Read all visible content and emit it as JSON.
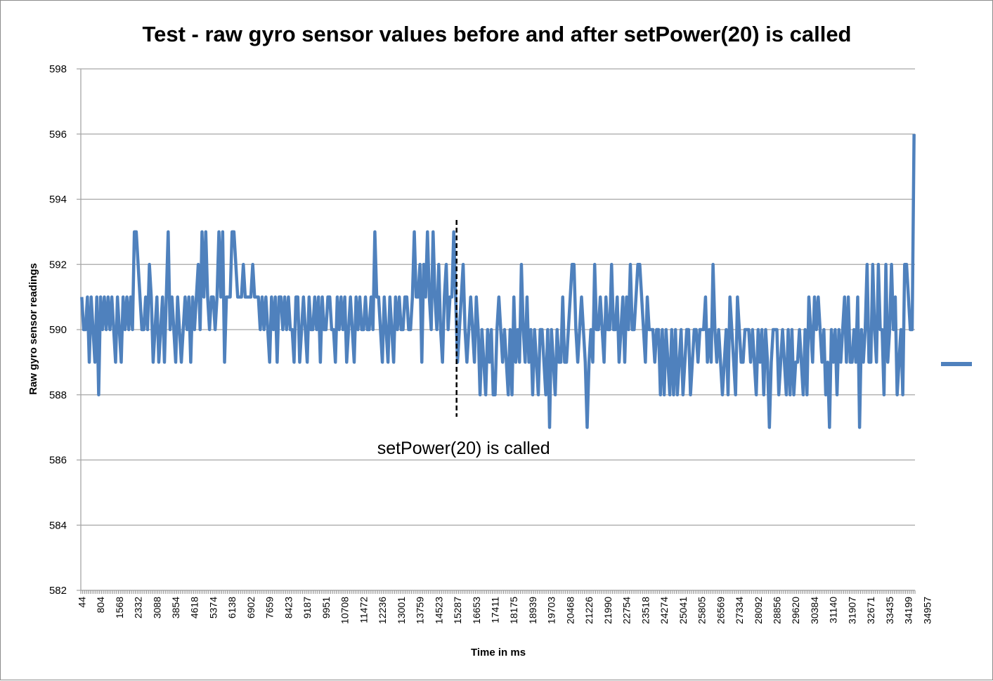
{
  "chart_data": {
    "type": "line",
    "title": "Test - raw gyro sensor values before and after setPower(20) is called",
    "xlabel": "Time in ms",
    "ylabel": "Raw gyro sensor readings",
    "ylim": [
      582,
      598
    ],
    "y_ticks": [
      582,
      584,
      586,
      588,
      590,
      592,
      594,
      596,
      598
    ],
    "x_ticks": [
      "44",
      "804",
      "1568",
      "2332",
      "3088",
      "3854",
      "4618",
      "5374",
      "6138",
      "6902",
      "7659",
      "8423",
      "9187",
      "9951",
      "10708",
      "11472",
      "12236",
      "13001",
      "13759",
      "14523",
      "15287",
      "16653",
      "17411",
      "18175",
      "18939",
      "19703",
      "20468",
      "21226",
      "21990",
      "22754",
      "23518",
      "24274",
      "25041",
      "25805",
      "26569",
      "27334",
      "28092",
      "28856",
      "29620",
      "30384",
      "31140",
      "31907",
      "32671",
      "33435",
      "34199",
      "34957"
    ],
    "grid": "horizontal",
    "legend": "right",
    "colors": {
      "series": "#4F81BD",
      "grid": "#a6a6a6",
      "annotation": "#000000"
    },
    "annotation": {
      "text": "setPower(20) is called",
      "x_index": 200
    },
    "series": [
      {
        "values": [
          591,
          590,
          590,
          591,
          589,
          591,
          590,
          589,
          591,
          588,
          591,
          590,
          591,
          590,
          591,
          590,
          591,
          590,
          589,
          591,
          590,
          589,
          591,
          590,
          591,
          590,
          591,
          590,
          593,
          593,
          592,
          591,
          590,
          590,
          591,
          590,
          592,
          591,
          589,
          590,
          591,
          589,
          590,
          591,
          589,
          591,
          593,
          590,
          591,
          590,
          589,
          591,
          590,
          589,
          590,
          591,
          590,
          591,
          589,
          591,
          590,
          591,
          592,
          590,
          593,
          591,
          593,
          591,
          590,
          591,
          591,
          590,
          591,
          593,
          591,
          593,
          589,
          591,
          591,
          591,
          593,
          593,
          592,
          591,
          591,
          591,
          592,
          591,
          591,
          591,
          591,
          592,
          591,
          591,
          591,
          590,
          591,
          590,
          591,
          590,
          589,
          591,
          590,
          591,
          589,
          591,
          591,
          590,
          591,
          590,
          591,
          590,
          590,
          589,
          591,
          591,
          589,
          590,
          591,
          590,
          589,
          591,
          590,
          590,
          591,
          590,
          591,
          589,
          591,
          590,
          590,
          591,
          591,
          590,
          590,
          589,
          591,
          590,
          591,
          590,
          591,
          589,
          590,
          591,
          590,
          589,
          591,
          590,
          591,
          590,
          590,
          591,
          590,
          590,
          591,
          590,
          593,
          591,
          591,
          590,
          589,
          591,
          590,
          589,
          591,
          590,
          589,
          591,
          590,
          591,
          590,
          590,
          591,
          591,
          590,
          590,
          591,
          593,
          591,
          591,
          592,
          589,
          592,
          591,
          593,
          591,
          590,
          593,
          591,
          590,
          592,
          590,
          589,
          591,
          592,
          590,
          591,
          591,
          593,
          591,
          589,
          590,
          591,
          592,
          590,
          589,
          590,
          591,
          590,
          589,
          591,
          590,
          588,
          590,
          589,
          588,
          590,
          589,
          590,
          588,
          588,
          590,
          591,
          590,
          589,
          590,
          589,
          588,
          590,
          588,
          591,
          589,
          590,
          589,
          592,
          590,
          589,
          591,
          589,
          590,
          588,
          590,
          589,
          588,
          590,
          590,
          589,
          588,
          590,
          587,
          590,
          589,
          588,
          590,
          589,
          589,
          591,
          589,
          589,
          590,
          591,
          592,
          592,
          590,
          589,
          590,
          591,
          590,
          589,
          587,
          589,
          590,
          589,
          592,
          590,
          590,
          591,
          590,
          589,
          591,
          590,
          590,
          592,
          590,
          590,
          591,
          589,
          590,
          591,
          589,
          591,
          590,
          592,
          590,
          590,
          591,
          592,
          592,
          591,
          590,
          589,
          591,
          590,
          590,
          590,
          589,
          590,
          590,
          588,
          590,
          588,
          590,
          589,
          588,
          590,
          588,
          590,
          588,
          589,
          590,
          588,
          589,
          590,
          590,
          588,
          589,
          590,
          590,
          589,
          590,
          590,
          590,
          591,
          589,
          590,
          589,
          592,
          590,
          589,
          590,
          589,
          588,
          589,
          590,
          588,
          591,
          590,
          589,
          588,
          591,
          590,
          589,
          589,
          590,
          590,
          590,
          589,
          590,
          589,
          588,
          590,
          589,
          590,
          588,
          590,
          589,
          587,
          589,
          590,
          590,
          590,
          588,
          589,
          590,
          589,
          588,
          590,
          588,
          590,
          588,
          589,
          589,
          590,
          589,
          588,
          590,
          588,
          591,
          590,
          589,
          591,
          590,
          591,
          590,
          589,
          590,
          588,
          589,
          587,
          590,
          589,
          590,
          588,
          590,
          589,
          590,
          591,
          589,
          591,
          589,
          589,
          590,
          589,
          591,
          587,
          590,
          589,
          590,
          592,
          589,
          589,
          592,
          590,
          589,
          592,
          590,
          590,
          588,
          592,
          589,
          590,
          592,
          590,
          591,
          588,
          589,
          590,
          588,
          592,
          592,
          591,
          590,
          590,
          596
        ]
      }
    ]
  }
}
